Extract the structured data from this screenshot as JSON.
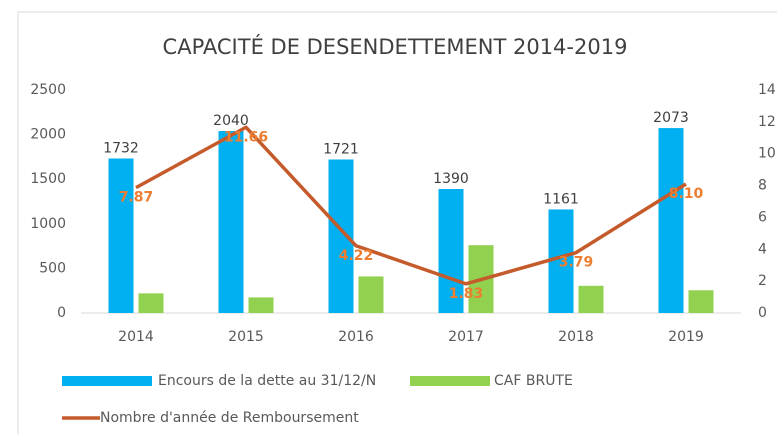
{
  "chart_data": {
    "type": "bar",
    "title": "CAPACITÉ DE DESENDETTEMENT 2014-2019",
    "categories": [
      "2014",
      "2015",
      "2016",
      "2017",
      "2018",
      "2019"
    ],
    "series": [
      {
        "name": "Encours de la dette au 31/12/N",
        "type": "bar",
        "color": "#00b0f0",
        "values": [
          1732,
          2040,
          1721,
          1390,
          1161,
          2073
        ]
      },
      {
        "name": "CAF BRUTE",
        "type": "bar",
        "color": "#92d050",
        "values": [
          220,
          175,
          410,
          760,
          305,
          255
        ]
      },
      {
        "name": "Nombre d'année de Remboursement",
        "type": "line",
        "axis": "y2",
        "color": "#c55a2b",
        "values": [
          7.87,
          11.66,
          4.22,
          1.83,
          3.79,
          8.1
        ],
        "value_labels": [
          "7.87",
          "11.66",
          "4.22",
          "1.83",
          "3.79",
          "8.10"
        ]
      }
    ],
    "ylim": [
      0,
      2500
    ],
    "yticks": [
      0,
      500,
      1000,
      1500,
      2000,
      2500
    ],
    "y2lim": [
      0,
      14
    ],
    "y2ticks": [
      0,
      2,
      4,
      6,
      8,
      10,
      12,
      14
    ],
    "grid": false,
    "legend": "bottom"
  }
}
